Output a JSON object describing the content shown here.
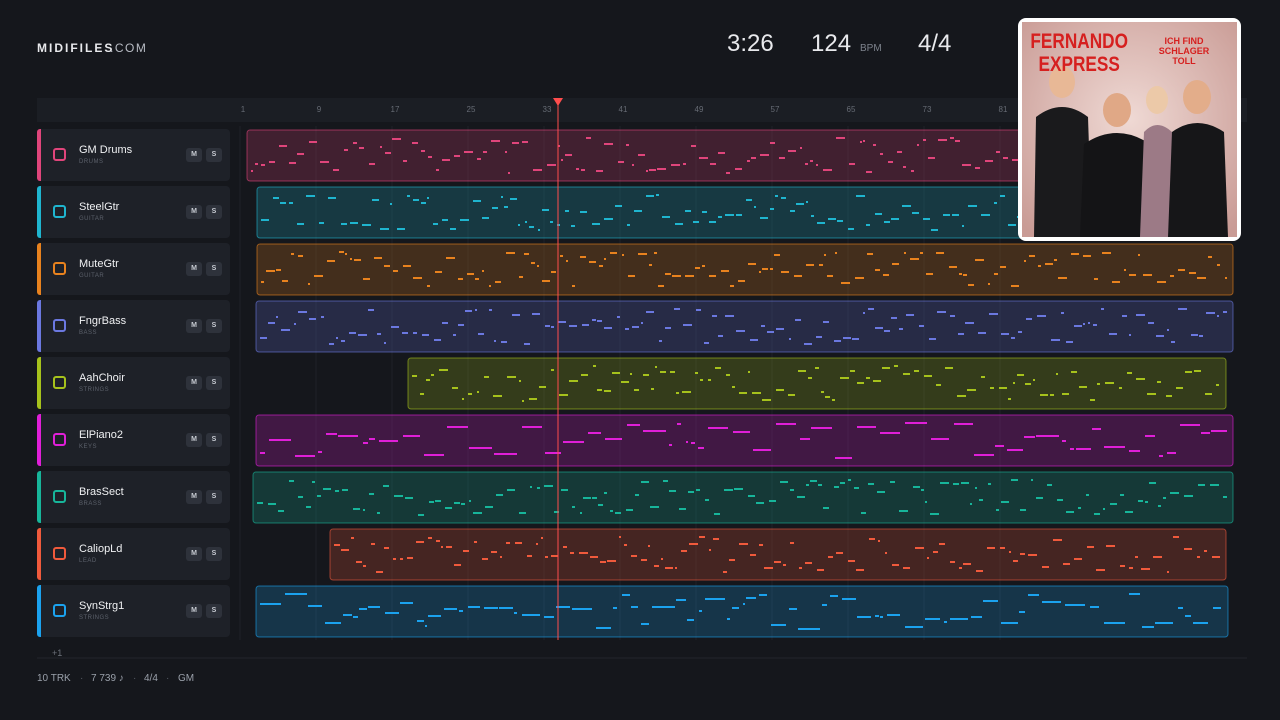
{
  "header": {
    "brand": "MIDIFILES",
    "brand_suffix": ".COM",
    "time": "3:26",
    "tempo": "124",
    "tempo_unit": "BPM",
    "meter": "4/4"
  },
  "ruler": {
    "ticks": [
      "1",
      "9",
      "17",
      "25",
      "33",
      "41",
      "49",
      "57",
      "65",
      "73",
      "81"
    ]
  },
  "tracks": [
    {
      "name": "GM Drums",
      "kind": "DRUMS",
      "color": "#e0457b",
      "mute": "M",
      "solo": "S"
    },
    {
      "name": "SteelGtr",
      "kind": "GUITAR",
      "color": "#1fb5cf",
      "mute": "M",
      "solo": "S"
    },
    {
      "name": "MuteGtr",
      "kind": "GUITAR",
      "color": "#e8821e",
      "mute": "M",
      "solo": "S"
    },
    {
      "name": "FngrBass",
      "kind": "BASS",
      "color": "#6b78e0",
      "mute": "M",
      "solo": "S"
    },
    {
      "name": "AahChoir",
      "kind": "STRINGS",
      "color": "#a6c21c",
      "mute": "M",
      "solo": "S"
    },
    {
      "name": "ElPiano2",
      "kind": "KEYS",
      "color": "#e01fd8",
      "mute": "M",
      "solo": "S"
    },
    {
      "name": "BrasSect",
      "kind": "BRASS",
      "color": "#17b59a",
      "mute": "M",
      "solo": "S"
    },
    {
      "name": "CaliopLd",
      "kind": "LEAD",
      "color": "#f05a3c",
      "mute": "M",
      "solo": "S"
    },
    {
      "name": "SynStrg1",
      "kind": "STRINGS",
      "color": "#1ba2ee",
      "mute": "M",
      "solo": "S"
    }
  ],
  "more_tracks": "+1",
  "footer": {
    "tracks": "10 TRK",
    "notes": "7 739 ♪",
    "meter": "4/4",
    "bank": "GM"
  },
  "cover": {
    "artist": "FERNANDO EXPRESS",
    "album": "ICH FIND SCHLAGER TOLL"
  }
}
